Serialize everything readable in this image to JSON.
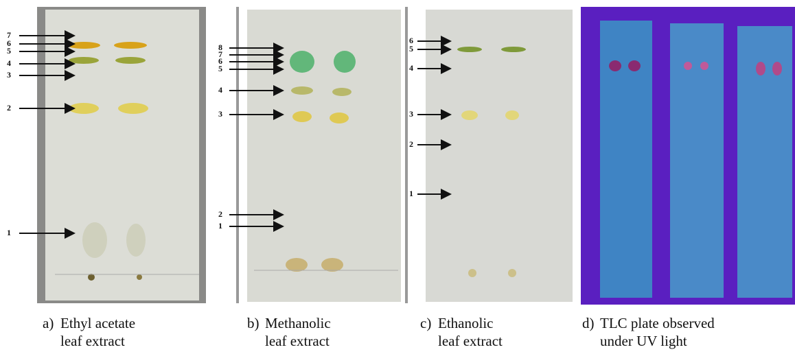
{
  "panels": [
    {
      "label": "a)",
      "caption": [
        "Ethyl acetate",
        "leaf extract"
      ],
      "arrows": [
        "7",
        "6",
        "5",
        "4",
        "3",
        "2",
        "1"
      ]
    },
    {
      "label": "b)",
      "caption": [
        "Methanolic",
        "leaf extract"
      ],
      "arrows": [
        "8",
        "7",
        "6",
        "5",
        "4",
        "3",
        "2",
        "1"
      ]
    },
    {
      "label": "c)",
      "caption": [
        "Ethanolic",
        "leaf extract"
      ],
      "arrows": [
        "6",
        "5",
        "4",
        "3",
        "2",
        "1"
      ]
    },
    {
      "label": "d)",
      "caption": [
        "TLC plate observed",
        "under UV light"
      ]
    }
  ]
}
